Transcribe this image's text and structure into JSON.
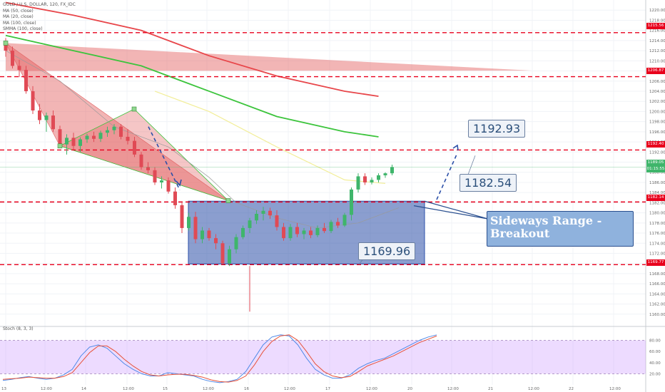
{
  "symbol_title": "GOLD / U.S. DOLLAR, 120, FX_IDC",
  "legend": [
    "MA (50, close)",
    "MA (20, close)",
    "MA (100, close)",
    "SMMA (100, close)"
  ],
  "stoch_title": "Stoch (8, 3, 3)",
  "annotations": {
    "resistance_label": "1192.93",
    "breakout_level_label": "1182.54",
    "support_label": "1169.96",
    "breakout_text_line1": "Sideways Range -",
    "breakout_text_line2": "Breakout"
  },
  "price_tags": {
    "top": "1215.56",
    "upper": "1206.87",
    "resist": "1192.40",
    "current": "1189.05",
    "timer": "01:15:55",
    "breakout": "1182.14",
    "support": "1169.77"
  },
  "colors": {
    "up": "#3fb56b",
    "down": "#e04a55",
    "red_line": "#e8001c",
    "range_box": "#2b4fa8",
    "ma_red": "#e8464a",
    "ma_green": "#3cc43c",
    "ma_yellow": "#f2ee9a",
    "ma_gray": "#9a9a9a",
    "stoch_k": "#4f8ae8",
    "stoch_d": "#e8523a"
  },
  "chart_data": {
    "type": "candlestick",
    "ylim": [
      1158,
      1222
    ],
    "y_ticks": [
      1160,
      1162,
      1164,
      1166,
      1168,
      1170,
      1172,
      1174,
      1176,
      1178,
      1180,
      1182,
      1184,
      1186,
      1188,
      1190,
      1192,
      1194,
      1196,
      1198,
      1200,
      1202,
      1204,
      1206,
      1208,
      1210,
      1212,
      1214,
      1216,
      1218,
      1220
    ],
    "x_ticks": [
      "13",
      "12:00",
      "14",
      "12:00",
      "15",
      "12:00",
      "16",
      "12:00",
      "17",
      "12:00",
      "20",
      "12:00",
      "21",
      "12:00",
      "22",
      "12:00"
    ],
    "horizontal_levels": [
      1215.56,
      1206.87,
      1192.4,
      1182.14,
      1169.77
    ],
    "current_price": 1189.05,
    "stoch_ylim": [
      0,
      100
    ],
    "stoch_ticks": [
      20,
      40,
      60,
      80
    ],
    "stoch_levels": [
      20,
      80
    ],
    "candles": [
      {
        "o": 1213.5,
        "h": 1214.5,
        "l": 1210.8,
        "c": 1212.0
      },
      {
        "o": 1212.0,
        "h": 1212.8,
        "l": 1208.5,
        "c": 1209.0
      },
      {
        "o": 1209.0,
        "h": 1210.2,
        "l": 1206.8,
        "c": 1208.2
      },
      {
        "o": 1208.2,
        "h": 1209.0,
        "l": 1203.5,
        "c": 1204.0
      },
      {
        "o": 1204.0,
        "h": 1205.0,
        "l": 1199.5,
        "c": 1200.2
      },
      {
        "o": 1200.2,
        "h": 1201.5,
        "l": 1197.5,
        "c": 1198.3
      },
      {
        "o": 1198.3,
        "h": 1199.8,
        "l": 1196.0,
        "c": 1199.2
      },
      {
        "o": 1199.2,
        "h": 1200.2,
        "l": 1196.0,
        "c": 1196.5
      },
      {
        "o": 1196.5,
        "h": 1197.2,
        "l": 1192.8,
        "c": 1193.5
      },
      {
        "o": 1193.5,
        "h": 1195.5,
        "l": 1191.5,
        "c": 1194.8
      },
      {
        "o": 1194.8,
        "h": 1195.8,
        "l": 1192.5,
        "c": 1193.2
      },
      {
        "o": 1193.2,
        "h": 1194.9,
        "l": 1192.0,
        "c": 1194.5
      },
      {
        "o": 1194.5,
        "h": 1195.6,
        "l": 1193.8,
        "c": 1195.2
      },
      {
        "o": 1195.2,
        "h": 1196.0,
        "l": 1194.0,
        "c": 1194.6
      },
      {
        "o": 1194.6,
        "h": 1196.2,
        "l": 1194.0,
        "c": 1195.8
      },
      {
        "o": 1195.8,
        "h": 1197.0,
        "l": 1195.0,
        "c": 1196.3
      },
      {
        "o": 1196.3,
        "h": 1197.5,
        "l": 1195.5,
        "c": 1197.0
      },
      {
        "o": 1197.0,
        "h": 1197.5,
        "l": 1194.5,
        "c": 1195.0
      },
      {
        "o": 1195.0,
        "h": 1196.5,
        "l": 1193.5,
        "c": 1194.2
      },
      {
        "o": 1194.2,
        "h": 1195.0,
        "l": 1191.0,
        "c": 1191.5
      },
      {
        "o": 1191.5,
        "h": 1192.0,
        "l": 1188.5,
        "c": 1189.0
      },
      {
        "o": 1189.0,
        "h": 1190.0,
        "l": 1187.8,
        "c": 1188.4
      },
      {
        "o": 1188.4,
        "h": 1189.0,
        "l": 1185.5,
        "c": 1186.0
      },
      {
        "o": 1186.0,
        "h": 1187.2,
        "l": 1184.8,
        "c": 1186.4
      },
      {
        "o": 1186.4,
        "h": 1187.0,
        "l": 1183.8,
        "c": 1184.2
      },
      {
        "o": 1184.2,
        "h": 1185.0,
        "l": 1180.8,
        "c": 1181.5
      },
      {
        "o": 1181.5,
        "h": 1182.0,
        "l": 1176.0,
        "c": 1177.0
      },
      {
        "o": 1177.0,
        "h": 1180.0,
        "l": 1176.5,
        "c": 1179.2
      },
      {
        "o": 1179.2,
        "h": 1180.2,
        "l": 1174.0,
        "c": 1174.8
      },
      {
        "o": 1174.8,
        "h": 1177.2,
        "l": 1174.0,
        "c": 1176.5
      },
      {
        "o": 1176.5,
        "h": 1177.0,
        "l": 1174.5,
        "c": 1175.0
      },
      {
        "o": 1175.0,
        "h": 1175.8,
        "l": 1172.8,
        "c": 1174.0
      },
      {
        "o": 1174.0,
        "h": 1174.5,
        "l": 1169.8,
        "c": 1170.0
      },
      {
        "o": 1170.0,
        "h": 1173.5,
        "l": 1169.5,
        "c": 1172.8
      },
      {
        "o": 1172.8,
        "h": 1175.8,
        "l": 1172.0,
        "c": 1175.2
      },
      {
        "o": 1175.2,
        "h": 1177.5,
        "l": 1174.8,
        "c": 1177.0
      },
      {
        "o": 1177.0,
        "h": 1179.0,
        "l": 1176.0,
        "c": 1178.5
      },
      {
        "o": 1178.5,
        "h": 1180.5,
        "l": 1177.8,
        "c": 1179.8
      },
      {
        "o": 1179.8,
        "h": 1181.2,
        "l": 1178.5,
        "c": 1180.4
      },
      {
        "o": 1180.4,
        "h": 1181.0,
        "l": 1178.8,
        "c": 1179.5
      },
      {
        "o": 1179.5,
        "h": 1180.5,
        "l": 1176.5,
        "c": 1177.2
      },
      {
        "o": 1177.2,
        "h": 1178.0,
        "l": 1174.5,
        "c": 1175.0
      },
      {
        "o": 1175.0,
        "h": 1177.8,
        "l": 1174.5,
        "c": 1177.2
      },
      {
        "o": 1177.2,
        "h": 1178.0,
        "l": 1175.2,
        "c": 1175.8
      },
      {
        "o": 1175.8,
        "h": 1177.0,
        "l": 1174.8,
        "c": 1176.5
      },
      {
        "o": 1176.5,
        "h": 1177.2,
        "l": 1175.0,
        "c": 1175.6
      },
      {
        "o": 1175.6,
        "h": 1177.5,
        "l": 1175.2,
        "c": 1177.0
      },
      {
        "o": 1177.0,
        "h": 1178.0,
        "l": 1176.0,
        "c": 1176.4
      },
      {
        "o": 1176.4,
        "h": 1178.6,
        "l": 1176.0,
        "c": 1178.2
      },
      {
        "o": 1178.2,
        "h": 1179.0,
        "l": 1177.0,
        "c": 1177.5
      },
      {
        "o": 1177.5,
        "h": 1180.0,
        "l": 1177.2,
        "c": 1179.6
      },
      {
        "o": 1179.6,
        "h": 1185.0,
        "l": 1178.5,
        "c": 1184.6
      },
      {
        "o": 1184.6,
        "h": 1187.8,
        "l": 1184.0,
        "c": 1187.2
      },
      {
        "o": 1187.2,
        "h": 1187.8,
        "l": 1185.5,
        "c": 1186.0
      },
      {
        "o": 1186.0,
        "h": 1187.0,
        "l": 1185.6,
        "c": 1186.5
      },
      {
        "o": 1186.5,
        "h": 1187.8,
        "l": 1186.0,
        "c": 1187.4
      },
      {
        "o": 1187.4,
        "h": 1188.0,
        "l": 1186.9,
        "c": 1187.8
      },
      {
        "o": 1187.8,
        "h": 1189.5,
        "l": 1187.4,
        "c": 1189.0
      }
    ],
    "moving_averages": [
      {
        "name": "MA (50, close)",
        "color": "#e8464a",
        "points": [
          [
            0,
            1221.5
          ],
          [
            10,
            1219
          ],
          [
            20,
            1216
          ],
          [
            30,
            1211
          ],
          [
            40,
            1207
          ],
          [
            50,
            1204
          ],
          [
            55,
            1203
          ]
        ]
      },
      {
        "name": "MA (100, close)",
        "color": "#3cc43c",
        "points": [
          [
            0,
            1215
          ],
          [
            10,
            1212
          ],
          [
            20,
            1209
          ],
          [
            30,
            1204
          ],
          [
            40,
            1199
          ],
          [
            50,
            1196
          ],
          [
            55,
            1195
          ]
        ]
      }
    ],
    "stoch_k": [
      8,
      10,
      13,
      15,
      12,
      10,
      12,
      18,
      28,
      52,
      68,
      72,
      66,
      52,
      38,
      28,
      20,
      16,
      16,
      22,
      20,
      18,
      16,
      10,
      6,
      4,
      6,
      10,
      24,
      48,
      72,
      86,
      90,
      88,
      72,
      48,
      28,
      18,
      12,
      12,
      18,
      30,
      38,
      44,
      48,
      56,
      64,
      72,
      80,
      86,
      90
    ],
    "stoch_d": [
      10,
      11,
      12,
      14,
      13,
      12,
      12,
      15,
      22,
      40,
      58,
      70,
      70,
      60,
      46,
      34,
      24,
      18,
      16,
      18,
      19,
      19,
      17,
      14,
      9,
      6,
      5,
      8,
      16,
      36,
      60,
      78,
      88,
      90,
      80,
      60,
      38,
      24,
      16,
      13,
      15,
      24,
      34,
      40,
      46,
      52,
      60,
      68,
      76,
      82,
      88
    ]
  }
}
